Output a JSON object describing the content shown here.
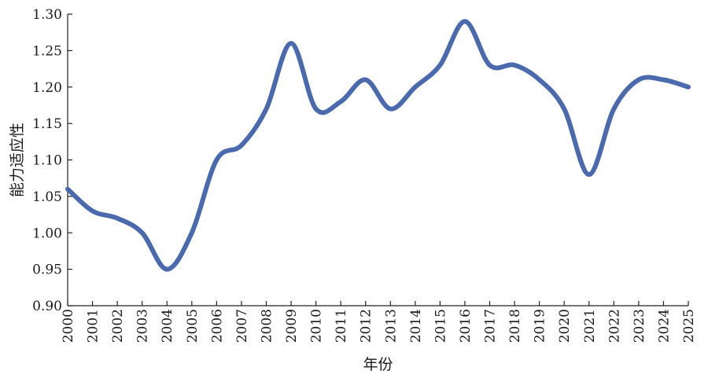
{
  "chart_data": {
    "type": "line",
    "xlabel": "年份",
    "ylabel": "能力适应性",
    "x": [
      "2000",
      "2001",
      "2002",
      "2003",
      "2004",
      "2005",
      "2006",
      "2007",
      "2008",
      "2009",
      "2010",
      "2011",
      "2012",
      "2013",
      "2014",
      "2015",
      "2016",
      "2017",
      "2018",
      "2019",
      "2020",
      "2021",
      "2022",
      "2023",
      "2024",
      "2025"
    ],
    "ylim": [
      0.9,
      1.3
    ],
    "yticks": [
      "0.90",
      "0.95",
      "1.00",
      "1.05",
      "1.10",
      "1.15",
      "1.20",
      "1.25",
      "1.30"
    ],
    "series": [
      {
        "values": [
          1.06,
          1.03,
          1.02,
          1.0,
          0.95,
          1.0,
          1.1,
          1.12,
          1.17,
          1.26,
          1.17,
          1.18,
          1.21,
          1.17,
          1.2,
          1.23,
          1.29,
          1.23,
          1.23,
          1.21,
          1.17,
          1.08,
          1.17,
          1.21,
          1.21,
          1.2
        ],
        "color": "#4a6aad"
      }
    ],
    "grid": false,
    "legend": "none"
  }
}
